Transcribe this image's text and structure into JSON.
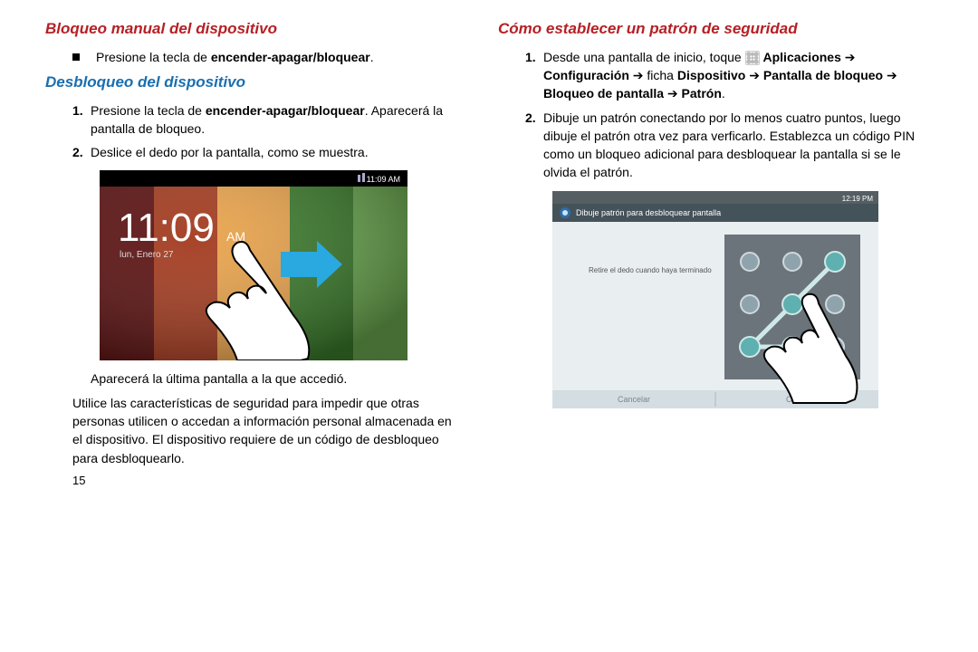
{
  "left": {
    "h1": "Bloqueo manual del dispositivo",
    "bullet": "Presione la tecla de <b>encender-apagar/bloquear</b>.",
    "h2": "Desbloqueo del dispositivo",
    "steps": [
      "Presione la tecla de <b>encender-apagar/bloquear</b>. Aparecerá la pantalla de bloqueo.",
      "Deslice el dedo por la pantalla, como se muestra."
    ],
    "fig1": {
      "clock": "11:09",
      "ampm": "AM",
      "date": "lun, Enero 27",
      "status_time": "11:09 AM",
      "bg_colors": [
        "#5a0f0f",
        "#a33a1e",
        "#e8a24a",
        "#3a7a2a",
        "#6aa84f"
      ],
      "arrow_color": "#2aa8e0"
    },
    "after_fig": "Aparecerá la última pantalla a la que accedió.",
    "para": "Utilice las características de seguridad para impedir que otras personas utilicen o accedan a información personal almacenada en el dispositivo. El dispositivo requiere de un código de desbloqueo para desbloquearlo.",
    "pagenum": "15"
  },
  "right": {
    "h1": "Cómo establecer un patrón de seguridad",
    "steps": [
      "Desde una pantalla de inicio, toque <span class=\"apps-icon\" data-name=\"apps-grid-icon\" data-interactable=\"false\"></span> <b>Aplicaciones</b> ➔ <b>Configuración</b> ➔ ficha <b>Dispositivo</b> ➔ <b>Pantalla de bloqueo</b> ➔ <b>Bloqueo de pantalla</b> ➔ <b>Patrón</b>.",
      "Dibuje un patrón conectando por lo menos cuatro puntos, luego dibuje el patrón otra vez para verficarlo. Establezca un código PIN como un bloqueo adicional para desbloquear la pantalla si se le olvida el patrón."
    ],
    "fig2": {
      "header": "Dibuje patrón para desbloquear pantalla",
      "hint": "Retire el dedo cuando haya terminado",
      "status_time": "12:19 PM",
      "btn_left": "Cancelar",
      "btn_right": "Confir",
      "bg_color": "#e9eef1",
      "bar_color": "#545e63",
      "grid_bg": "#6a747a",
      "dot_border": "#cfd8dc",
      "dot_fill": "#8fa3ad",
      "selected_fill": "#5fb0b0",
      "line_color": "#cfe8e8"
    }
  }
}
